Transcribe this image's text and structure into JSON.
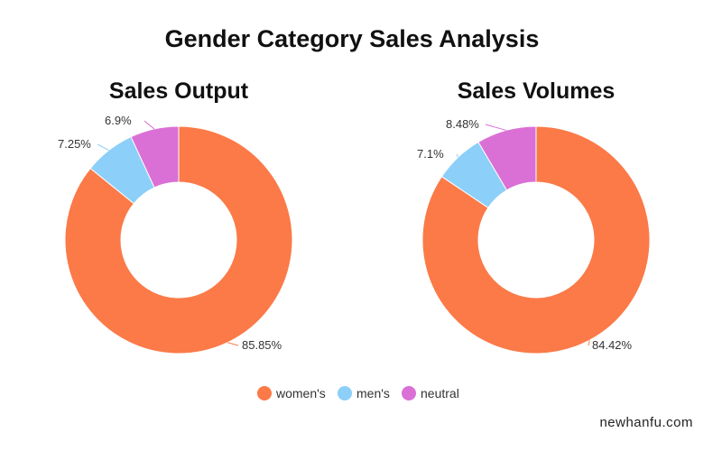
{
  "title": "Gender Category Sales Analysis",
  "watermark": "newhanfu.com",
  "legend": {
    "items": [
      {
        "label": "women's",
        "color": "#fb7a48"
      },
      {
        "label": "men's",
        "color": "#8ccff8"
      },
      {
        "label": "neutral",
        "color": "#da70d6"
      }
    ]
  },
  "chart_data": [
    {
      "type": "pie",
      "style": "donut",
      "title": "Sales Output",
      "categories": [
        "women's",
        "men's",
        "neutral"
      ],
      "values": [
        85.85,
        7.25,
        6.9
      ],
      "labels": [
        "85.85%",
        "7.25%",
        "6.9%"
      ],
      "colors": [
        "#fb7a48",
        "#8ccff8",
        "#da70d6"
      ],
      "start": "12 o'clock",
      "direction": "clockwise"
    },
    {
      "type": "pie",
      "style": "donut",
      "title": "Sales Volumes",
      "categories": [
        "women's",
        "men's",
        "neutral"
      ],
      "values": [
        84.42,
        7.1,
        8.48
      ],
      "labels": [
        "84.42%",
        "7.1%",
        "8.48%"
      ],
      "colors": [
        "#fb7a48",
        "#8ccff8",
        "#da70d6"
      ],
      "start": "12 o'clock",
      "direction": "clockwise"
    }
  ]
}
